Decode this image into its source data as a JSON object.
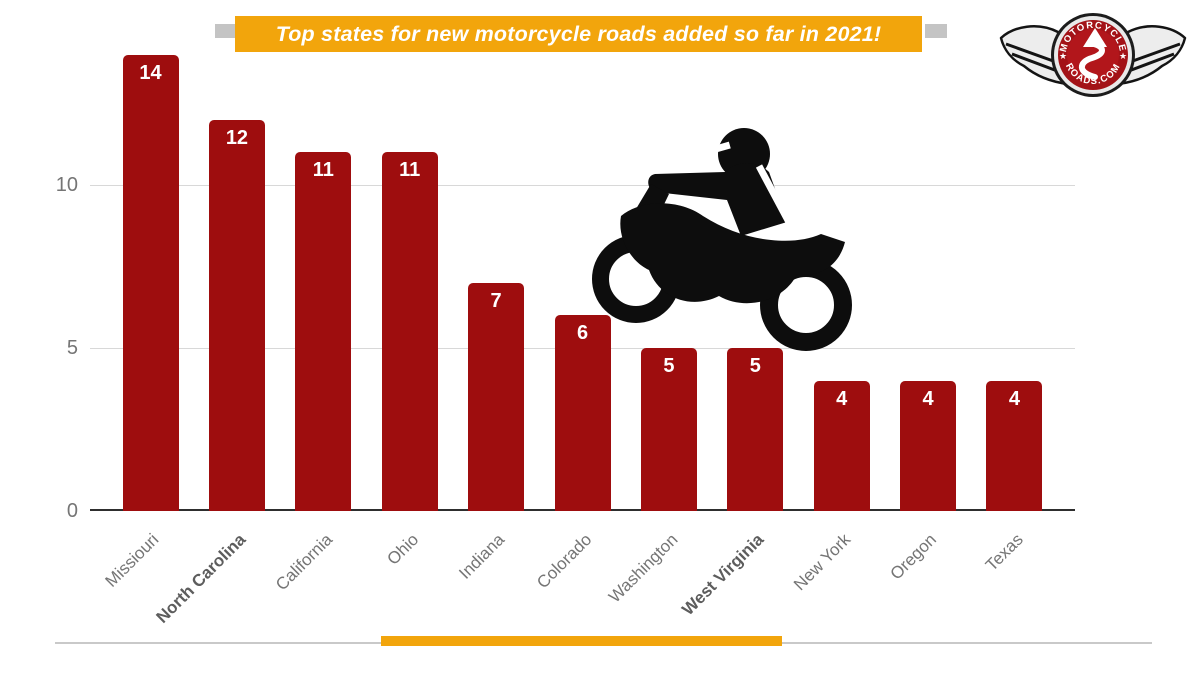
{
  "banner": {
    "title": "Top states for new motorcycle roads added so far in 2021!"
  },
  "logo": {
    "top_text": "MOTORCYCLE",
    "bottom_text": "ROADS.COM",
    "star": "★"
  },
  "icons": {
    "motorcycle_rider": "black silhouette of rider on motorcycle",
    "logo_emblem": "winged red badge with curvy road arrow"
  },
  "colors": {
    "bar_red": "#9E0D0E",
    "accent_orange": "#F2A50C",
    "banner_tab_gray": "#C4C4C4",
    "gridline_gray": "#D8D8D8",
    "axis_black": "#2E2E2E",
    "tick_label_gray": "#757575",
    "emphasized_label_gray": "#5D5D5D",
    "logo_red": "#A31217",
    "value_label_white": "#FFFFFF"
  },
  "chart_data": {
    "type": "bar",
    "title": "Top states for new motorcycle roads added so far in 2021!",
    "categories": [
      "Missiouri",
      "North Carolina",
      "California",
      "Ohio",
      "Indiana",
      "Colorado",
      "Washington",
      "West Virginia",
      "New York",
      "Oregon",
      "Texas"
    ],
    "values": [
      14,
      12,
      11,
      11,
      7,
      6,
      5,
      5,
      4,
      4,
      4
    ],
    "emphasized_categories": [
      "North Carolina",
      "West Virginia"
    ],
    "xlabel": "",
    "ylabel": "",
    "yticks": [
      0,
      5,
      10
    ],
    "ylim": [
      0,
      15.5
    ],
    "grid": true,
    "legend": false,
    "value_labels_position": "inside-bar-top",
    "x_tick_rotation_deg": -45
  }
}
